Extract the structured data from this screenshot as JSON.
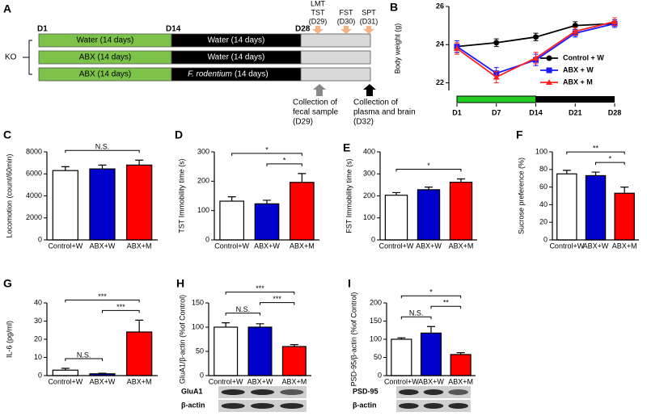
{
  "schematic": {
    "panel_label": "A",
    "days": [
      "D1",
      "D14",
      "D28"
    ],
    "group_label": "KO",
    "rows": [
      [
        "Water (14 days)",
        "Water (14 days)"
      ],
      [
        "ABX (14 days)",
        "Water (14 days)"
      ],
      [
        "ABX (14 days)",
        "F. rodentium",
        "(14 days)"
      ]
    ],
    "tests": [
      [
        "LMT",
        "TST",
        "(D29)"
      ],
      [
        "FST",
        "(D30)"
      ],
      [
        "SPT",
        "(D31)"
      ]
    ],
    "collections": [
      [
        "Collection of",
        "fecal sample",
        "(D29)"
      ],
      [
        "Collection of",
        "plasma and brain",
        "(D32)"
      ]
    ]
  },
  "chart_data": [
    {
      "type": "line",
      "panel_label": "B",
      "ylabel": "Body weight (g)",
      "categories": [
        "D1",
        "D7",
        "D14",
        "D21",
        "D28"
      ],
      "ylim": [
        21.6,
        26
      ],
      "yticks": [
        22,
        24,
        26
      ],
      "series": [
        {
          "name": "Control + W",
          "color": "#000000",
          "marker": "circle",
          "values": [
            23.9,
            24.1,
            24.4,
            25.0,
            25.1
          ],
          "errors": [
            0.3,
            0.2,
            0.2,
            0.2,
            0.2
          ]
        },
        {
          "name": "ABX + W",
          "color": "#1a1aff",
          "marker": "square",
          "values": [
            23.9,
            22.5,
            23.2,
            24.6,
            25.1
          ],
          "errors": [
            0.3,
            0.3,
            0.3,
            0.2,
            0.2
          ]
        },
        {
          "name": "ABX + M",
          "color": "#ff2020",
          "marker": "triangle",
          "values": [
            23.8,
            22.3,
            23.3,
            24.7,
            25.2
          ],
          "errors": [
            0.3,
            0.3,
            0.3,
            0.2,
            0.2
          ]
        }
      ]
    },
    {
      "type": "bar",
      "panel_label": "C",
      "ylabel": "Locomotion (count/60min)",
      "categories": [
        "Control+W",
        "ABX+W",
        "ABX+M"
      ],
      "colors": [
        "#ffffff",
        "#0000cc",
        "#ff0000"
      ],
      "values": [
        6300,
        6450,
        6800
      ],
      "errors": [
        350,
        350,
        450
      ],
      "ylim": [
        0,
        8000
      ],
      "yticks": [
        0,
        2000,
        4000,
        6000,
        8000
      ],
      "significance": [
        {
          "pair": [
            "Control+W",
            "ABX+M"
          ],
          "label": "N.S."
        }
      ]
    },
    {
      "type": "bar",
      "panel_label": "D",
      "ylabel": "TST Immobility time (s)",
      "categories": [
        "Control+W",
        "ABX+W",
        "ABX+M"
      ],
      "colors": [
        "#ffffff",
        "#0000cc",
        "#ff0000"
      ],
      "values": [
        132,
        123,
        196
      ],
      "errors": [
        15,
        12,
        30
      ],
      "ylim": [
        0,
        300
      ],
      "yticks": [
        0,
        100,
        200,
        300
      ],
      "significance": [
        {
          "pair": [
            "Control+W",
            "ABX+M"
          ],
          "label": "*"
        },
        {
          "pair": [
            "ABX+W",
            "ABX+M"
          ],
          "label": "*"
        }
      ]
    },
    {
      "type": "bar",
      "panel_label": "E",
      "ylabel": "FST Immobility time (s)",
      "categories": [
        "Control+W",
        "ABX+W",
        "ABX+M"
      ],
      "colors": [
        "#ffffff",
        "#0000cc",
        "#ff0000"
      ],
      "values": [
        203,
        228,
        262
      ],
      "errors": [
        12,
        12,
        15
      ],
      "ylim": [
        0,
        400
      ],
      "yticks": [
        0,
        100,
        200,
        300,
        400
      ],
      "significance": [
        {
          "pair": [
            "Control+W",
            "ABX+M"
          ],
          "label": "*"
        }
      ]
    },
    {
      "type": "bar",
      "panel_label": "F",
      "ylabel": "Sucrose preference  (%)",
      "categories": [
        "Control+W",
        "ABX+W",
        "ABX+M"
      ],
      "colors": [
        "#ffffff",
        "#0000cc",
        "#ff0000"
      ],
      "values": [
        75,
        73,
        53
      ],
      "errors": [
        4,
        4,
        7
      ],
      "ylim": [
        0,
        100
      ],
      "yticks": [
        0,
        20,
        40,
        60,
        80,
        100
      ],
      "significance": [
        {
          "pair": [
            "Control+W",
            "ABX+M"
          ],
          "label": "**"
        },
        {
          "pair": [
            "ABX+W",
            "ABX+M"
          ],
          "label": "*"
        }
      ]
    },
    {
      "type": "bar",
      "panel_label": "G",
      "ylabel": "IL-6 (pg/ml)",
      "categories": [
        "Control+W",
        "ABX+W",
        "ABX+M"
      ],
      "colors": [
        "#ffffff",
        "#0000cc",
        "#ff0000"
      ],
      "values": [
        3,
        1,
        24
      ],
      "errors": [
        1,
        0.3,
        6.5
      ],
      "ylim": [
        0,
        40
      ],
      "yticks": [
        0,
        10,
        20,
        30,
        40
      ],
      "significance": [
        {
          "pair": [
            "Control+W",
            "ABX+M"
          ],
          "label": "***"
        },
        {
          "pair": [
            "ABX+W",
            "ABX+M"
          ],
          "label": "***"
        },
        {
          "pair": [
            "Control+W",
            "ABX+W"
          ],
          "label": "N.S."
        }
      ]
    },
    {
      "type": "bar",
      "panel_label": "H",
      "ylabel": "GluA1/β-actin (%of Control)",
      "categories": [
        "Control+W",
        "ABX+W",
        "ABX+M"
      ],
      "colors": [
        "#ffffff",
        "#0000cc",
        "#ff0000"
      ],
      "values": [
        100,
        100,
        60
      ],
      "errors": [
        9,
        7,
        4
      ],
      "ylim": [
        0,
        150
      ],
      "yticks": [
        0,
        50,
        100,
        150
      ],
      "significance": [
        {
          "pair": [
            "Control+W",
            "ABX+M"
          ],
          "label": "***"
        },
        {
          "pair": [
            "ABX+W",
            "ABX+M"
          ],
          "label": "***"
        },
        {
          "pair": [
            "Control+W",
            "ABX+W"
          ],
          "label": "N.S."
        }
      ],
      "blot_labels": [
        "GluA1",
        "β-actin"
      ]
    },
    {
      "type": "bar",
      "panel_label": "I",
      "ylabel": "PSD-95/β-actin (%of Control)",
      "categories": [
        "Control+W",
        "ABX+W",
        "ABX+M"
      ],
      "colors": [
        "#ffffff",
        "#0000cc",
        "#ff0000"
      ],
      "values": [
        100,
        117,
        58
      ],
      "errors": [
        4,
        18,
        5
      ],
      "ylim": [
        0,
        200
      ],
      "yticks": [
        0,
        50,
        100,
        150,
        200
      ],
      "significance": [
        {
          "pair": [
            "Control+W",
            "ABX+M"
          ],
          "label": "*"
        },
        {
          "pair": [
            "ABX+W",
            "ABX+M"
          ],
          "label": "**"
        },
        {
          "pair": [
            "Control+W",
            "ABX+W"
          ],
          "label": "N.S."
        }
      ],
      "blot_labels": [
        "PSD-95",
        "β-actin"
      ]
    }
  ]
}
